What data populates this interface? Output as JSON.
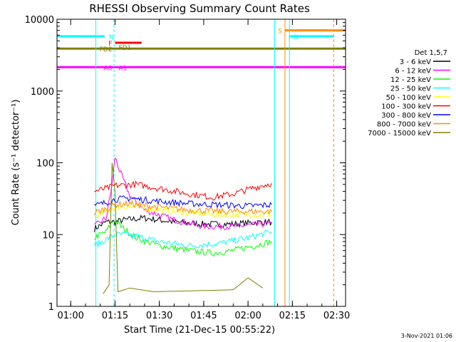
{
  "chart_data": {
    "type": "line",
    "title": "RHESSI Observing Summary Count Rates",
    "xlabel": "Start Time (21-Dec-15 00:55:22)",
    "ylabel": "Count Rate (s⁻¹ detector⁻¹)",
    "yscale": "log",
    "ylim": [
      1,
      10000
    ],
    "xlim": [
      "00:55:22",
      "02:33:00"
    ],
    "x_ticks": [
      "01:00",
      "01:15",
      "01:30",
      "01:45",
      "02:00",
      "02:15",
      "02:30"
    ],
    "y_ticks": [
      "1",
      "10",
      "100",
      "1000",
      "10000"
    ],
    "legend_title": "Det 1,5,7",
    "legend_position": "right",
    "grid": false,
    "series": [
      {
        "name": "3 - 6 keV",
        "color": "#000000",
        "x": [
          "01:08",
          "01:12",
          "01:15",
          "01:18",
          "01:25",
          "01:35",
          "01:45",
          "01:55",
          "02:05",
          "02:08"
        ],
        "values": [
          12,
          15,
          15,
          16,
          17,
          15,
          14,
          14,
          15,
          15
        ]
      },
      {
        "name": "6 - 12 keV",
        "color": "#ff00ff",
        "x": [
          "01:08",
          "01:12",
          "01:14",
          "01:15",
          "01:17",
          "01:20",
          "01:25",
          "01:35",
          "01:45",
          "01:55",
          "02:05",
          "02:08"
        ],
        "values": [
          13,
          17,
          50,
          120,
          70,
          35,
          22,
          16,
          13,
          13,
          14,
          14
        ]
      },
      {
        "name": "12 - 25 keV",
        "color": "#00ff00",
        "x": [
          "01:08",
          "01:12",
          "01:14",
          "01:15",
          "01:17",
          "01:22",
          "01:30",
          "01:40",
          "01:48",
          "01:55",
          "02:02",
          "02:08"
        ],
        "values": [
          9,
          11,
          15,
          16,
          13,
          9,
          7,
          6,
          5.5,
          6,
          7,
          8
        ]
      },
      {
        "name": "25 - 50 keV",
        "color": "#00ffff",
        "x": [
          "01:08",
          "01:12",
          "01:15",
          "01:20",
          "01:30",
          "01:40",
          "01:50",
          "02:00",
          "02:08"
        ],
        "values": [
          7,
          8.5,
          10,
          10,
          8,
          7,
          7.5,
          9,
          11
        ]
      },
      {
        "name": "50 - 100 keV",
        "color": "#ffff00",
        "x": [
          "01:08",
          "01:12",
          "01:15",
          "01:20",
          "01:30",
          "01:40",
          "01:50",
          "02:00",
          "02:08"
        ],
        "values": [
          18,
          21,
          24,
          25,
          22,
          20,
          19,
          19,
          19
        ]
      },
      {
        "name": "100 - 300 keV",
        "color": "#ff0000",
        "x": [
          "01:08",
          "01:12",
          "01:15",
          "01:22",
          "01:30",
          "01:40",
          "01:48",
          "01:55",
          "02:02",
          "02:08"
        ],
        "values": [
          40,
          44,
          48,
          50,
          44,
          37,
          33,
          37,
          45,
          52
        ]
      },
      {
        "name": "300 - 800 keV",
        "color": "#0000ff",
        "x": [
          "01:08",
          "01:12",
          "01:15",
          "01:20",
          "01:30",
          "01:40",
          "01:50",
          "02:00",
          "02:08"
        ],
        "values": [
          25,
          28,
          31,
          32,
          29,
          27,
          26,
          25,
          26
        ]
      },
      {
        "name": "800 - 7000 keV",
        "color": "#ff8c00",
        "x": [
          "01:08",
          "01:12",
          "01:15",
          "01:20",
          "01:30",
          "01:40",
          "01:50",
          "02:00",
          "02:08"
        ],
        "values": [
          20,
          23,
          26,
          27,
          24,
          22,
          21,
          21,
          21
        ]
      },
      {
        "name": "7000 - 15000 keV",
        "color": "#808000",
        "x": [
          "01:11",
          "01:13",
          "01:14",
          "01:15",
          "01:16",
          "01:20",
          "01:28",
          "01:55",
          "02:00",
          "02:05"
        ],
        "values": [
          1.5,
          2,
          100,
          40,
          1.6,
          1.8,
          1.6,
          1.7,
          2.5,
          1.8
        ]
      }
    ],
    "flags": [
      {
        "label": "N",
        "color": "#00ffff",
        "start": "00:55:22",
        "end": "01:11:30",
        "level": 5800
      },
      {
        "label": "N",
        "color": "#00ffff",
        "start": "02:14:00",
        "end": "02:29:00",
        "level": 5800
      },
      {
        "label": "F",
        "color": "#ff0000",
        "start": "01:15:00",
        "end": "01:24:00",
        "level": 4700
      },
      {
        "label": "FD1",
        "color": "#808000",
        "start": "01:15:00",
        "end": "01:15:00",
        "level": 4100
      },
      {
        "label": "FD2",
        "color": "#808000",
        "start": "00:55:22",
        "end": "02:33:00",
        "level": 3900
      },
      {
        "label": "A0",
        "color": "#ff00ff",
        "start": "00:55:22",
        "end": "02:33:00",
        "level": 2150
      },
      {
        "label": "A1",
        "color": "#ff00ff",
        "start": "01:15:00",
        "end": "01:15:00",
        "level": 2150
      },
      {
        "label": "S",
        "color": "#ff8c00",
        "start": "02:12:30",
        "end": "02:33:00",
        "level": 7000
      }
    ],
    "footer": "3-Nov-2021 01:06"
  }
}
